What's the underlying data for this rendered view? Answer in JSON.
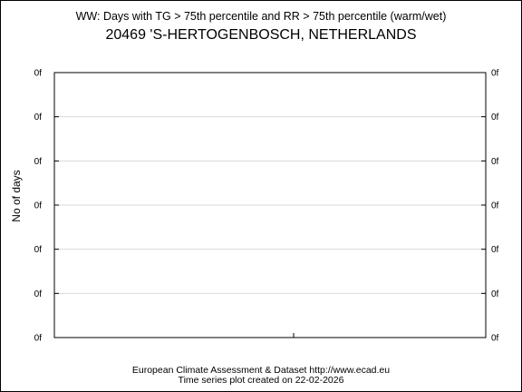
{
  "chart_data": {
    "type": "line",
    "title": "WW: Days with TG > 75th percentile and RR > 75th percentile (warm/wet)",
    "subtitle": "20469 'S-HERTOGENBOSCH, NETHERLANDS",
    "ylabel": "No of days",
    "xlabel": "",
    "y_tick_labels": [
      "0f",
      "0f",
      "0f",
      "0f",
      "0f",
      "0f",
      "0f"
    ],
    "grid": true,
    "series": []
  },
  "footer": {
    "line1": "European Climate Assessment & Dataset  http://www.ecad.eu",
    "line2": "Time series plot created on 22-02-2026"
  }
}
